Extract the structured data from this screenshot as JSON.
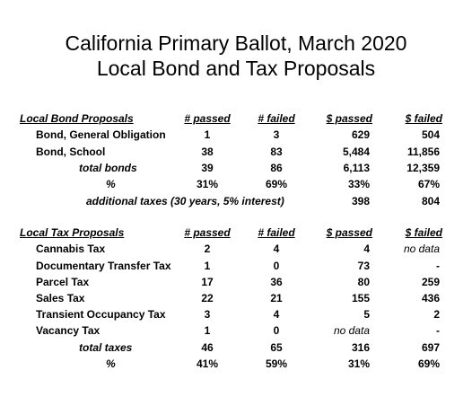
{
  "title": [
    "California Primary Ballot, March 2020",
    "Local Bond and Tax Proposals"
  ],
  "bond_table": {
    "header": [
      "Local Bond Proposals",
      "# passed",
      "# failed",
      "$ passed",
      "$ failed"
    ],
    "rows": [
      [
        "Bond, General Obligation",
        "1",
        "3",
        "629",
        "504"
      ],
      [
        "Bond, School",
        "38",
        "83",
        "5,484",
        "11,856"
      ]
    ],
    "total": [
      "total bonds",
      "39",
      "86",
      "6,113",
      "12,359"
    ],
    "percent": [
      "%",
      "31%",
      "69%",
      "33%",
      "67%"
    ],
    "additional": [
      "additional taxes (30 years, 5% interest)",
      "398",
      "804"
    ]
  },
  "tax_table": {
    "header": [
      "Local Tax Proposals",
      "# passed",
      "# failed",
      "$ passed",
      "$ failed"
    ],
    "rows": [
      [
        "Cannabis Tax",
        "2",
        "4",
        "4",
        "no data"
      ],
      [
        "Documentary Transfer Tax",
        "1",
        "0",
        "73",
        "-"
      ],
      [
        "Parcel Tax",
        "17",
        "36",
        "80",
        "259"
      ],
      [
        "Sales Tax",
        "22",
        "21",
        "155",
        "436"
      ],
      [
        "Transient Occupancy Tax",
        "3",
        "4",
        "5",
        "2"
      ],
      [
        "Vacancy Tax",
        "1",
        "0",
        "no data",
        "-"
      ]
    ],
    "total": [
      "total taxes",
      "46",
      "65",
      "316",
      "697"
    ],
    "percent": [
      "%",
      "41%",
      "59%",
      "31%",
      "69%"
    ]
  }
}
